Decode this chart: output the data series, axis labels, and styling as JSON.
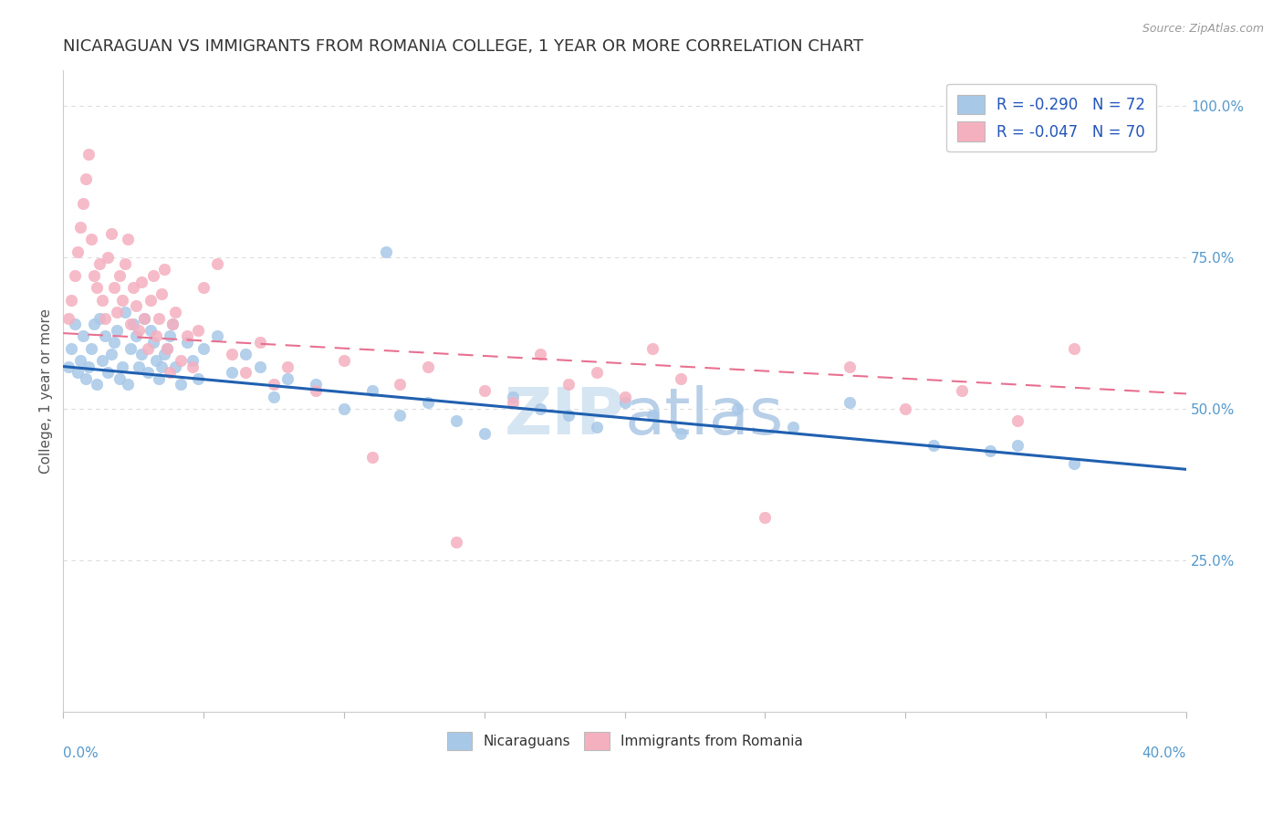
{
  "title": "NICARAGUAN VS IMMIGRANTS FROM ROMANIA COLLEGE, 1 YEAR OR MORE CORRELATION CHART",
  "source": "Source: ZipAtlas.com",
  "ylabel": "College, 1 year or more",
  "legend_blue_label": "R = -0.290   N = 72",
  "legend_pink_label": "R = -0.047   N = 70",
  "legend_bottom_blue": "Nicaraguans",
  "legend_bottom_pink": "Immigrants from Romania",
  "blue_scatter_color": "#a8c8e8",
  "pink_scatter_color": "#f5b0c0",
  "blue_line_color": "#2060b0",
  "pink_line_color": "#e87090",
  "blue_line_y0": 0.57,
  "blue_line_y1": 0.4,
  "pink_line_y0": 0.625,
  "pink_line_y1": 0.525,
  "xlim": [
    0.0,
    0.4
  ],
  "ylim": [
    0.0,
    1.06
  ],
  "yticks": [
    0.25,
    0.5,
    0.75,
    1.0
  ],
  "ytick_labels": [
    "25.0%",
    "50.0%",
    "75.0%",
    "100.0%"
  ],
  "axis_color": "#5599cc",
  "title_color": "#333333",
  "grid_color": "#dddddd",
  "source_color": "#999999",
  "background_color": "#ffffff",
  "legend_text_color": "#2255bb",
  "watermark_zip_color": "#dde8f0",
  "watermark_atlas_color": "#c8ddf0",
  "blue_x": [
    0.002,
    0.003,
    0.004,
    0.005,
    0.006,
    0.007,
    0.008,
    0.009,
    0.01,
    0.011,
    0.012,
    0.013,
    0.014,
    0.015,
    0.016,
    0.017,
    0.018,
    0.019,
    0.02,
    0.021,
    0.022,
    0.023,
    0.024,
    0.025,
    0.026,
    0.027,
    0.028,
    0.029,
    0.03,
    0.031,
    0.032,
    0.033,
    0.034,
    0.035,
    0.036,
    0.037,
    0.038,
    0.039,
    0.04,
    0.042,
    0.044,
    0.046,
    0.048,
    0.05,
    0.055,
    0.06,
    0.065,
    0.07,
    0.075,
    0.08,
    0.09,
    0.1,
    0.11,
    0.115,
    0.12,
    0.13,
    0.14,
    0.15,
    0.16,
    0.17,
    0.18,
    0.19,
    0.2,
    0.21,
    0.22,
    0.24,
    0.26,
    0.28,
    0.31,
    0.33,
    0.34,
    0.36
  ],
  "blue_y": [
    0.57,
    0.6,
    0.64,
    0.56,
    0.58,
    0.62,
    0.55,
    0.57,
    0.6,
    0.64,
    0.54,
    0.65,
    0.58,
    0.62,
    0.56,
    0.59,
    0.61,
    0.63,
    0.55,
    0.57,
    0.66,
    0.54,
    0.6,
    0.64,
    0.62,
    0.57,
    0.59,
    0.65,
    0.56,
    0.63,
    0.61,
    0.58,
    0.55,
    0.57,
    0.59,
    0.6,
    0.62,
    0.64,
    0.57,
    0.54,
    0.61,
    0.58,
    0.55,
    0.6,
    0.62,
    0.56,
    0.59,
    0.57,
    0.52,
    0.55,
    0.54,
    0.5,
    0.53,
    0.76,
    0.49,
    0.51,
    0.48,
    0.46,
    0.52,
    0.5,
    0.49,
    0.47,
    0.51,
    0.49,
    0.46,
    0.5,
    0.47,
    0.51,
    0.44,
    0.43,
    0.44,
    0.41
  ],
  "pink_x": [
    0.002,
    0.003,
    0.004,
    0.005,
    0.006,
    0.007,
    0.008,
    0.009,
    0.01,
    0.011,
    0.012,
    0.013,
    0.014,
    0.015,
    0.016,
    0.017,
    0.018,
    0.019,
    0.02,
    0.021,
    0.022,
    0.023,
    0.024,
    0.025,
    0.026,
    0.027,
    0.028,
    0.029,
    0.03,
    0.031,
    0.032,
    0.033,
    0.034,
    0.035,
    0.036,
    0.037,
    0.038,
    0.039,
    0.04,
    0.042,
    0.044,
    0.046,
    0.048,
    0.05,
    0.055,
    0.06,
    0.065,
    0.07,
    0.075,
    0.08,
    0.09,
    0.1,
    0.11,
    0.12,
    0.13,
    0.14,
    0.15,
    0.16,
    0.17,
    0.18,
    0.19,
    0.2,
    0.21,
    0.22,
    0.25,
    0.28,
    0.3,
    0.32,
    0.34,
    0.36
  ],
  "pink_y": [
    0.65,
    0.68,
    0.72,
    0.76,
    0.8,
    0.84,
    0.88,
    0.92,
    0.78,
    0.72,
    0.7,
    0.74,
    0.68,
    0.65,
    0.75,
    0.79,
    0.7,
    0.66,
    0.72,
    0.68,
    0.74,
    0.78,
    0.64,
    0.7,
    0.67,
    0.63,
    0.71,
    0.65,
    0.6,
    0.68,
    0.72,
    0.62,
    0.65,
    0.69,
    0.73,
    0.6,
    0.56,
    0.64,
    0.66,
    0.58,
    0.62,
    0.57,
    0.63,
    0.7,
    0.74,
    0.59,
    0.56,
    0.61,
    0.54,
    0.57,
    0.53,
    0.58,
    0.42,
    0.54,
    0.57,
    0.28,
    0.53,
    0.51,
    0.59,
    0.54,
    0.56,
    0.52,
    0.6,
    0.55,
    0.32,
    0.57,
    0.5,
    0.53,
    0.48,
    0.6
  ]
}
